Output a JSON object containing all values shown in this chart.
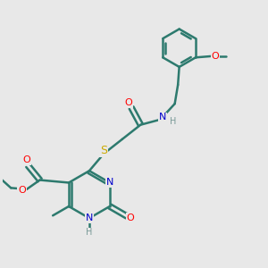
{
  "bg_color": "#e8e8e8",
  "bond_color": "#2d7a6e",
  "bond_width": 1.8,
  "atom_colors": {
    "O": "#ff0000",
    "N": "#0000cc",
    "S": "#ccaa00",
    "H": "#7a9a98",
    "C": "#2d7a6e"
  },
  "figsize": [
    3.0,
    3.0
  ],
  "dpi": 100
}
